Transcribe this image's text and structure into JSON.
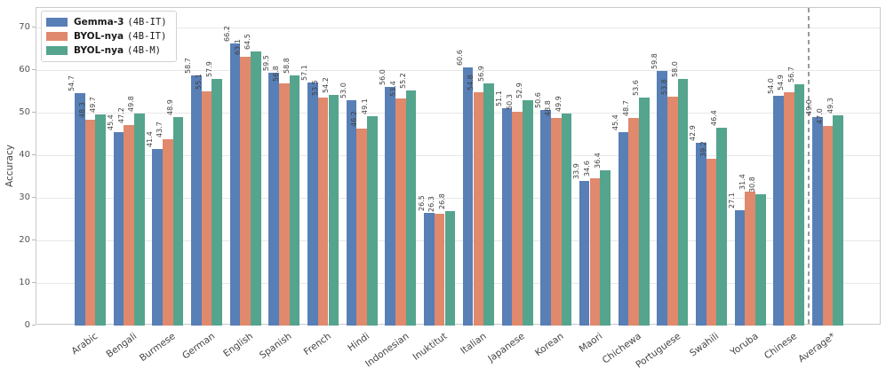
{
  "chart_data": {
    "type": "bar",
    "title": "",
    "xlabel": "",
    "ylabel": "Accuracy",
    "ylim": [
      0,
      74.6
    ],
    "yticks": [
      0,
      10,
      20,
      30,
      40,
      50,
      60,
      70
    ],
    "grid": "horizontal",
    "legend_position": "upper-left",
    "value_labels": true,
    "value_label_decimals": 1,
    "categories": [
      "Arabic",
      "Bengali",
      "Burmese",
      "German",
      "English",
      "Spanish",
      "French",
      "Hindi",
      "Indonesian",
      "Inuktitut",
      "Italian",
      "Japanese",
      "Korean",
      "Maori",
      "Chichewa",
      "Portuguese",
      "Swahili",
      "Yoruba",
      "Chinese",
      "Average*"
    ],
    "series": [
      {
        "name": "Gemma-3",
        "variant": "(4B-IT)",
        "color": "#587FB6",
        "values": [
          54.7,
          45.4,
          41.4,
          58.7,
          66.2,
          59.5,
          57.1,
          53.0,
          56.0,
          26.5,
          60.6,
          51.1,
          50.6,
          33.9,
          45.4,
          59.8,
          42.9,
          27.1,
          54.0,
          49.0
        ]
      },
      {
        "name": "BYOL-nya",
        "variant": "(4B-IT)",
        "color": "#E0896C",
        "values": [
          48.3,
          47.2,
          43.7,
          55.1,
          63.1,
          56.8,
          53.5,
          46.2,
          53.4,
          26.3,
          54.8,
          50.3,
          48.8,
          34.6,
          48.7,
          53.8,
          39.2,
          31.4,
          54.9,
          47.0
        ]
      },
      {
        "name": "BYOL-nya",
        "variant": "(4B-M)",
        "color": "#55A48E",
        "values": [
          49.7,
          49.8,
          48.9,
          57.9,
          64.5,
          58.8,
          54.2,
          49.1,
          55.2,
          26.8,
          56.9,
          52.9,
          49.9,
          36.4,
          53.6,
          58.0,
          46.4,
          30.8,
          56.7,
          49.3
        ]
      }
    ],
    "separator": {
      "after_category": "Chinese",
      "style": "dashed"
    },
    "colors": {
      "grid": "#e8e8e8",
      "spine": "#c9c9c9",
      "separator": "#9a9a9a",
      "value_label": "#404040",
      "tick_label": "#555555",
      "axis_label": "#444444",
      "tick_mark": "#b5b5b5"
    }
  }
}
